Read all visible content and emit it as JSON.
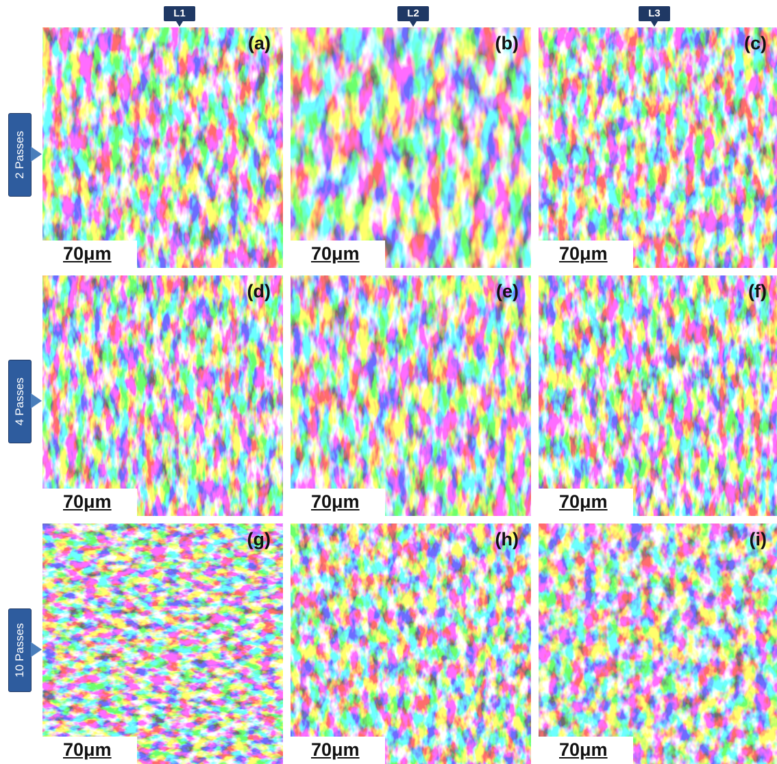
{
  "columns": [
    "L1",
    "L2",
    "L3"
  ],
  "rows": [
    "2 Passes",
    "4 Passes",
    "10 Passes"
  ],
  "panels": [
    "(a)",
    "(b)",
    "(c)",
    "(d)",
    "(e)",
    "(f)",
    "(g)",
    "(h)",
    "(i)"
  ],
  "scale_bar": "70μm"
}
